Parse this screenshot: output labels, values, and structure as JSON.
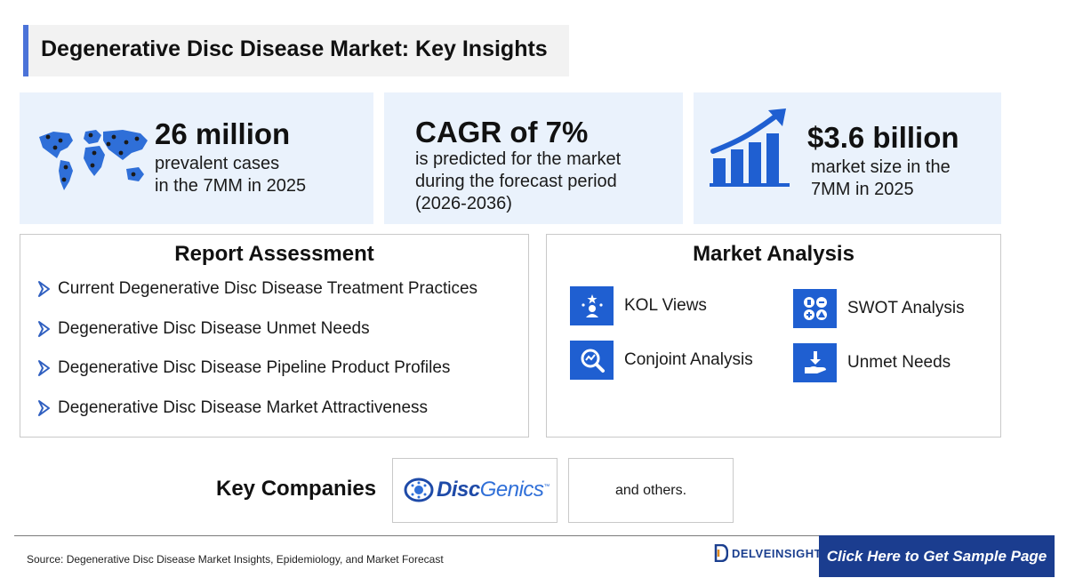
{
  "header": {
    "title": "Degenerative Disc Disease Market: Key Insights"
  },
  "stats": [
    {
      "value": "26 million",
      "description": "prevalent cases\nin the 7MM in 2025",
      "icon": "world-map-icon"
    },
    {
      "value": "CAGR of 7%",
      "description": "is predicted for the market\nduring the forecast period\n(2026-2036)"
    },
    {
      "value": "$3.6 billion",
      "description": "market size in the\n7MM in 2025",
      "icon": "growth-chart-icon"
    }
  ],
  "report_assessment": {
    "title": "Report Assessment",
    "items": [
      "Current Degenerative Disc Disease Treatment Practices",
      "Degenerative Disc Disease Unmet Needs",
      "Degenerative Disc Disease Pipeline Product Profiles",
      "Degenerative Disc Disease Market Attractiveness"
    ]
  },
  "market_analysis": {
    "title": "Market Analysis",
    "items": [
      {
        "label": "KOL Views",
        "icon": "kol-icon"
      },
      {
        "label": "SWOT Analysis",
        "icon": "swot-icon"
      },
      {
        "label": "Conjoint Analysis",
        "icon": "conjoint-icon"
      },
      {
        "label": "Unmet Needs",
        "icon": "unmet-needs-icon"
      }
    ]
  },
  "key_companies": {
    "label": "Key Companies",
    "companies": [
      {
        "name": "DiscGenics",
        "part1": "Disc",
        "part2": "Genics",
        "tm": "™"
      }
    ],
    "others": "and others."
  },
  "footer": {
    "source": "Source: Degenerative Disc Disease Market Insights, Epidemiology, and Market Forecast",
    "brand": "DELVEINSIGHT",
    "cta": "Click Here to Get Sample Page"
  },
  "colors": {
    "accent": "#4b73d8",
    "card_bg": "#eaf2fc",
    "icon_blue": "#1f5fd1",
    "cta_bg": "#1b3d8f"
  }
}
